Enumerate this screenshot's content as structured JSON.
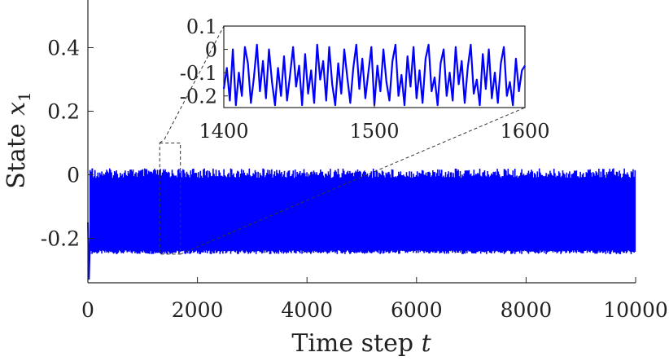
{
  "colors": {
    "series": "#0000ff",
    "axis": "#262626",
    "text": "#222222",
    "background": "#ffffff"
  },
  "chart_data": [
    {
      "type": "line",
      "role": "main",
      "xlabel": "Time step",
      "xlabel_var": "t",
      "ylabel": "State",
      "ylabel_var": "x",
      "ylabel_sub": "1",
      "xlim": [
        0,
        10000
      ],
      "ylim": [
        -0.34,
        0.55
      ],
      "xticks": [
        0,
        2000,
        4000,
        6000,
        8000,
        10000
      ],
      "xtick_labels": [
        "0",
        "2000",
        "4000",
        "6000",
        "8000",
        "10000"
      ],
      "yticks": [
        -0.2,
        0,
        0.2,
        0.4
      ],
      "ytick_labels": [
        "-0.2",
        "0",
        "0.2",
        "0.4"
      ],
      "grid": false,
      "series": [
        {
          "style": "dense oscillation band",
          "initial_transient": [
            [
              0,
              -0.15
            ],
            [
              20,
              -0.33
            ],
            [
              40,
              -0.2
            ]
          ],
          "band_lower": -0.25,
          "band_upper": 0.02,
          "x_range": [
            0,
            10000
          ]
        }
      ],
      "zoom_region": {
        "x": [
          1400,
          1600
        ],
        "y": [
          -0.25,
          0.1
        ]
      }
    },
    {
      "type": "line",
      "role": "inset",
      "xlim": [
        1400,
        1600
      ],
      "ylim": [
        -0.25,
        0.1
      ],
      "xticks": [
        1400,
        1500,
        1600
      ],
      "xtick_labels": [
        "1400",
        "1500",
        "1600"
      ],
      "yticks": [
        0.1,
        0,
        -0.1,
        -0.2
      ],
      "ytick_labels": [
        "0.1",
        "0",
        "-0.1",
        "-0.2"
      ],
      "series": [
        {
          "x": [
            1400,
            1402,
            1404,
            1406,
            1408,
            1410,
            1412,
            1414,
            1416,
            1418,
            1420,
            1422,
            1424,
            1426,
            1428,
            1430,
            1432,
            1434,
            1436,
            1438,
            1440,
            1442,
            1444,
            1446,
            1448,
            1450,
            1452,
            1454,
            1456,
            1458,
            1460,
            1462,
            1464,
            1466,
            1468,
            1470,
            1472,
            1474,
            1476,
            1478,
            1480,
            1482,
            1484,
            1486,
            1488,
            1490,
            1492,
            1494,
            1496,
            1498,
            1500,
            1502,
            1504,
            1506,
            1508,
            1510,
            1512,
            1514,
            1516,
            1518,
            1520,
            1522,
            1524,
            1526,
            1528,
            1530,
            1532,
            1534,
            1536,
            1538,
            1540,
            1542,
            1544,
            1546,
            1548,
            1550,
            1552,
            1554,
            1556,
            1558,
            1560,
            1562,
            1564,
            1566,
            1568,
            1570,
            1572,
            1574,
            1576,
            1578,
            1580,
            1582,
            1584,
            1586,
            1588,
            1590,
            1592,
            1594,
            1596,
            1598,
            1600
          ],
          "y": [
            -0.17,
            -0.08,
            -0.22,
            0.0,
            -0.24,
            -0.1,
            -0.2,
            0.01,
            -0.06,
            -0.23,
            -0.12,
            0.02,
            -0.18,
            -0.05,
            -0.21,
            0.0,
            -0.14,
            -0.24,
            -0.08,
            -0.2,
            -0.03,
            -0.22,
            -0.11,
            0.01,
            -0.16,
            -0.07,
            -0.24,
            -0.02,
            -0.19,
            -0.09,
            -0.23,
            0.02,
            -0.13,
            -0.05,
            -0.22,
            0.01,
            -0.15,
            -0.24,
            -0.06,
            -0.19,
            0.0,
            -0.12,
            -0.23,
            -0.08,
            0.02,
            -0.17,
            -0.04,
            -0.21,
            -0.1,
            0.01,
            -0.24,
            -0.07,
            -0.18,
            0.0,
            -0.14,
            -0.22,
            -0.05,
            0.02,
            -0.2,
            -0.11,
            -0.24,
            -0.03,
            -0.16,
            0.01,
            -0.21,
            -0.09,
            -0.23,
            -0.04,
            0.02,
            -0.18,
            -0.12,
            -0.24,
            -0.06,
            0.0,
            -0.2,
            -0.1,
            -0.22,
            0.01,
            -0.15,
            -0.05,
            -0.23,
            -0.08,
            0.02,
            -0.19,
            -0.13,
            -0.24,
            -0.02,
            -0.17,
            0.0,
            -0.21,
            -0.1,
            -0.23,
            -0.06,
            0.01,
            -0.2,
            -0.14,
            -0.24,
            -0.04,
            -0.18,
            -0.09,
            -0.07
          ]
        }
      ]
    }
  ]
}
